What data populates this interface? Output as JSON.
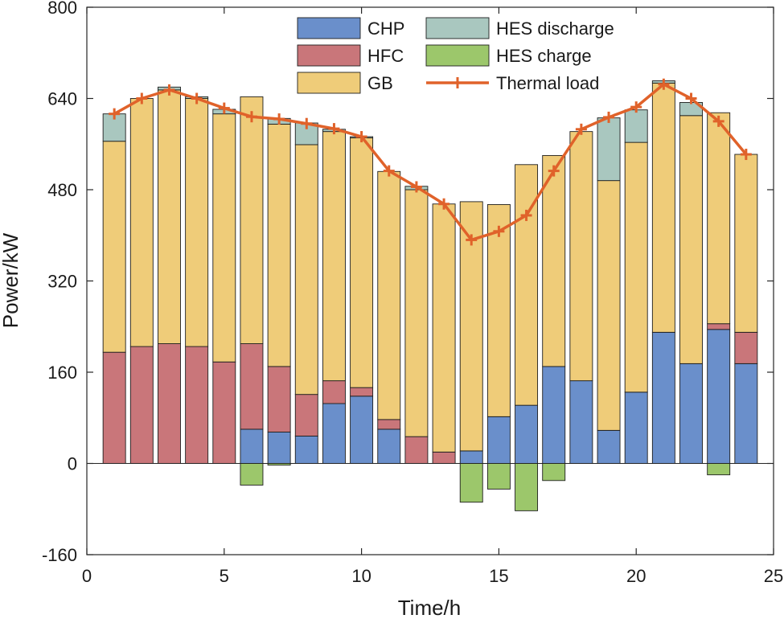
{
  "chart_data": {
    "type": "bar",
    "subtype": "stacked-bar-with-line",
    "title": "",
    "xlabel": "Time/h",
    "ylabel": "Power/kW",
    "xlim": [
      0,
      25
    ],
    "ylim": [
      -160,
      800
    ],
    "xticks": [
      0,
      5,
      10,
      15,
      20,
      25
    ],
    "yticks": [
      -160,
      0,
      160,
      320,
      480,
      640,
      800
    ],
    "x": [
      1,
      2,
      3,
      4,
      5,
      6,
      7,
      8,
      9,
      10,
      11,
      12,
      13,
      14,
      15,
      16,
      17,
      18,
      19,
      20,
      21,
      22,
      23,
      24
    ],
    "series": [
      {
        "name": "CHP",
        "kind": "bar",
        "color": "#6A8FCB",
        "values": [
          0,
          0,
          0,
          0,
          0,
          60,
          55,
          48,
          105,
          118,
          60,
          0,
          0,
          22,
          82,
          102,
          170,
          145,
          58,
          125,
          230,
          175,
          235,
          175
        ]
      },
      {
        "name": "HFC",
        "kind": "bar",
        "color": "#C9767A",
        "values": [
          195,
          205,
          210,
          205,
          178,
          150,
          115,
          73,
          40,
          15,
          17,
          47,
          20,
          0,
          0,
          0,
          0,
          0,
          0,
          0,
          0,
          0,
          10,
          55
        ]
      },
      {
        "name": "GB",
        "kind": "bar",
        "color": "#EFCC79",
        "values": [
          370,
          435,
          445,
          435,
          435,
          433,
          425,
          438,
          437,
          438,
          435,
          433,
          435,
          437,
          372,
          422,
          370,
          437,
          438,
          438,
          437,
          435,
          370,
          312
        ]
      },
      {
        "name": "HES discharge",
        "kind": "bar",
        "color": "#A9C7BF",
        "values": [
          48,
          0,
          5,
          3,
          8,
          0,
          10,
          38,
          4,
          2,
          0,
          6,
          0,
          0,
          0,
          0,
          0,
          0,
          110,
          57,
          4,
          23,
          0,
          0
        ]
      },
      {
        "name": "HES charge",
        "kind": "bar",
        "color": "#9CC76B",
        "values": [
          0,
          0,
          0,
          0,
          0,
          -38,
          -3,
          0,
          0,
          0,
          0,
          0,
          0,
          -68,
          -45,
          -83,
          -30,
          0,
          0,
          0,
          0,
          0,
          -20,
          0
        ]
      },
      {
        "name": "Thermal load",
        "kind": "line",
        "color": "#E0622A",
        "values": [
          613,
          640,
          655,
          640,
          623,
          608,
          604,
          596,
          587,
          573,
          513,
          485,
          455,
          392,
          407,
          435,
          513,
          586,
          607,
          625,
          665,
          640,
          600,
          542
        ]
      }
    ],
    "legend": {
      "position": "top-center",
      "columns": 2,
      "order": [
        "CHP",
        "HES discharge",
        "HFC",
        "HES charge",
        "GB",
        "Thermal load"
      ]
    }
  }
}
